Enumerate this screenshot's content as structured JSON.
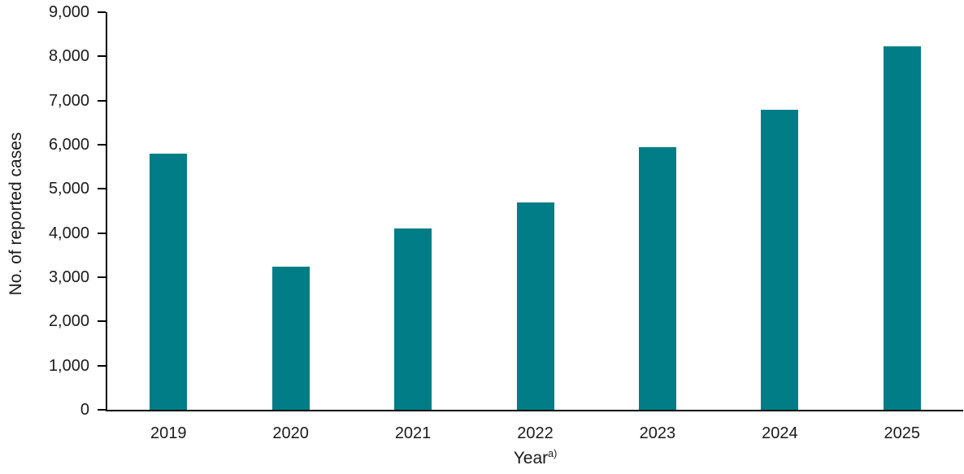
{
  "chart_data": {
    "type": "bar",
    "title": "",
    "xlabel": "Year",
    "xlabel_footnote_marker": "a)",
    "ylabel": "No. of reported cases",
    "categories": [
      "2019",
      "2020",
      "2021",
      "2022",
      "2023",
      "2024",
      "2025"
    ],
    "values": [
      5800,
      3240,
      4100,
      4700,
      5950,
      6800,
      8230
    ],
    "ylim": [
      0,
      9000
    ],
    "ytick_interval": 1000,
    "ytick_labels": [
      "0",
      "1,000",
      "2,000",
      "3,000",
      "4,000",
      "5,000",
      "6,000",
      "7,000",
      "8,000",
      "9,000"
    ],
    "bar_color": "#007D87",
    "axis_color": "#000000",
    "text_color": "#1A1A1A",
    "grid": "off",
    "legend": "none"
  }
}
